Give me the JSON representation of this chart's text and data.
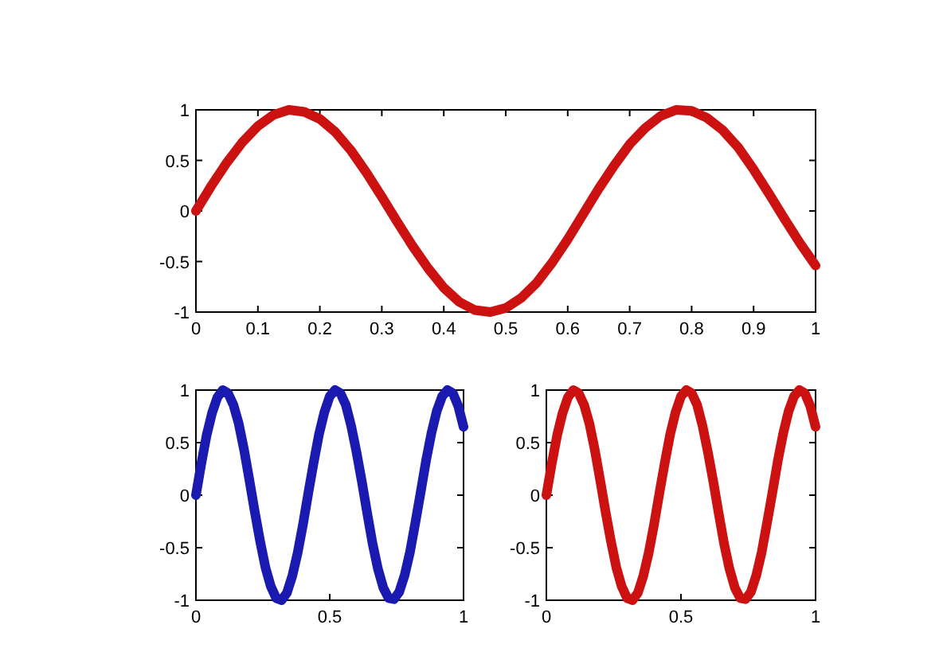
{
  "chart_data": [
    {
      "type": "line",
      "x": [
        0,
        0.025,
        0.05,
        0.075,
        0.1,
        0.125,
        0.15,
        0.175,
        0.2,
        0.225,
        0.25,
        0.275,
        0.3,
        0.325,
        0.35,
        0.375,
        0.4,
        0.425,
        0.45,
        0.475,
        0.5,
        0.525,
        0.55,
        0.575,
        0.6,
        0.625,
        0.65,
        0.675,
        0.7,
        0.725,
        0.75,
        0.775,
        0.8,
        0.825,
        0.85,
        0.875,
        0.9,
        0.925,
        0.95,
        0.975,
        1
      ],
      "series": [
        {
          "color": "#cc1111",
          "values": [
            0,
            0.25,
            0.48,
            0.68,
            0.84,
            0.95,
            1.0,
            0.98,
            0.91,
            0.78,
            0.6,
            0.38,
            0.14,
            -0.11,
            -0.35,
            -0.57,
            -0.76,
            -0.9,
            -0.98,
            -1.0,
            -0.96,
            -0.86,
            -0.71,
            -0.51,
            -0.28,
            -0.03,
            0.22,
            0.45,
            0.66,
            0.82,
            0.94,
            1.0,
            0.99,
            0.92,
            0.8,
            0.63,
            0.41,
            0.17,
            -0.08,
            -0.32,
            -0.54
          ]
        }
      ],
      "xlim": [
        0,
        1
      ],
      "ylim": [
        -1,
        1
      ],
      "xticks": [
        0,
        0.1,
        0.2,
        0.3,
        0.4,
        0.5,
        0.6,
        0.7,
        0.8,
        0.9,
        1
      ],
      "yticks": [
        -1,
        -0.5,
        0,
        0.5,
        1
      ],
      "grid": false,
      "line_style": "solid",
      "marker": "none"
    },
    {
      "type": "line",
      "x": [
        0,
        0.02,
        0.04,
        0.06,
        0.08,
        0.1,
        0.12,
        0.14,
        0.16,
        0.18,
        0.2,
        0.22,
        0.24,
        0.26,
        0.28,
        0.3,
        0.32,
        0.34,
        0.36,
        0.38,
        0.4,
        0.42,
        0.44,
        0.46,
        0.48,
        0.5,
        0.52,
        0.54,
        0.56,
        0.58,
        0.6,
        0.62,
        0.64,
        0.66,
        0.68,
        0.7,
        0.72,
        0.74,
        0.76,
        0.78,
        0.8,
        0.82,
        0.84,
        0.86,
        0.88,
        0.9,
        0.92,
        0.94,
        0.96,
        0.98,
        1
      ],
      "series": [
        {
          "color": "#1a1ab0",
          "values": [
            0,
            0.3,
            0.57,
            0.78,
            0.93,
            1.0,
            0.97,
            0.86,
            0.68,
            0.43,
            0.14,
            -0.16,
            -0.44,
            -0.69,
            -0.87,
            -0.98,
            -1.0,
            -0.93,
            -0.77,
            -0.55,
            -0.28,
            0.02,
            0.31,
            0.58,
            0.79,
            0.94,
            1.0,
            0.97,
            0.86,
            0.66,
            0.41,
            0.13,
            -0.17,
            -0.46,
            -0.7,
            -0.88,
            -0.98,
            -0.99,
            -0.92,
            -0.76,
            -0.54,
            -0.26,
            0.03,
            0.33,
            0.59,
            0.8,
            0.94,
            1.0,
            0.97,
            0.85,
            0.65
          ]
        }
      ],
      "xlim": [
        0,
        1
      ],
      "ylim": [
        -1,
        1
      ],
      "xticks": [
        0,
        0.5,
        1
      ],
      "yticks": [
        -1,
        -0.5,
        0,
        0.5,
        1
      ],
      "grid": false,
      "line_style": "solid",
      "marker": "none"
    },
    {
      "type": "line",
      "x": [
        0,
        0.02,
        0.04,
        0.06,
        0.08,
        0.1,
        0.12,
        0.14,
        0.16,
        0.18,
        0.2,
        0.22,
        0.24,
        0.26,
        0.28,
        0.3,
        0.32,
        0.34,
        0.36,
        0.38,
        0.4,
        0.42,
        0.44,
        0.46,
        0.48,
        0.5,
        0.52,
        0.54,
        0.56,
        0.58,
        0.6,
        0.62,
        0.64,
        0.66,
        0.68,
        0.7,
        0.72,
        0.74,
        0.76,
        0.78,
        0.8,
        0.82,
        0.84,
        0.86,
        0.88,
        0.9,
        0.92,
        0.94,
        0.96,
        0.98,
        1
      ],
      "series": [
        {
          "color": "#cc1111",
          "values": [
            0,
            0.3,
            0.57,
            0.78,
            0.93,
            1.0,
            0.97,
            0.86,
            0.68,
            0.43,
            0.14,
            -0.16,
            -0.44,
            -0.69,
            -0.87,
            -0.98,
            -1.0,
            -0.93,
            -0.77,
            -0.55,
            -0.28,
            0.02,
            0.31,
            0.58,
            0.79,
            0.94,
            1.0,
            0.97,
            0.86,
            0.66,
            0.41,
            0.13,
            -0.17,
            -0.46,
            -0.7,
            -0.88,
            -0.98,
            -0.99,
            -0.92,
            -0.76,
            -0.54,
            -0.26,
            0.03,
            0.33,
            0.59,
            0.8,
            0.94,
            1.0,
            0.97,
            0.85,
            0.65
          ]
        }
      ],
      "xlim": [
        0,
        1
      ],
      "ylim": [
        -1,
        1
      ],
      "xticks": [
        0,
        0.5,
        1
      ],
      "yticks": [
        -1,
        -0.5,
        0,
        0.5,
        1
      ],
      "grid": false,
      "line_style": "solid",
      "marker": "none"
    }
  ]
}
